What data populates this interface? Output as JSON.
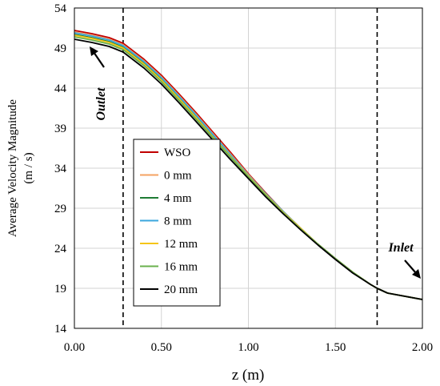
{
  "chart_data": {
    "type": "line",
    "xlabel": "z (m)",
    "ylabel": "Average Velocity Magnitude",
    "ylabel_unit": "(m / s)",
    "xlim": [
      0.0,
      2.0
    ],
    "ylim": [
      14,
      54
    ],
    "x_ticks": [
      "0.00",
      "0.50",
      "1.00",
      "1.50",
      "2.00"
    ],
    "y_ticks": [
      "14",
      "19",
      "24",
      "29",
      "34",
      "39",
      "44",
      "49",
      "54"
    ],
    "grid": true,
    "legend_position": "middle-left",
    "vertical_markers": [
      0.28,
      1.74
    ],
    "annotations": {
      "outlet": "Outlet",
      "inlet": "Inlet"
    },
    "series": [
      {
        "name": "WSO",
        "color": "#c00000",
        "x": [
          0,
          0.1,
          0.2,
          0.28,
          0.4,
          0.5,
          0.6,
          0.7,
          0.8,
          0.9,
          1.0,
          1.1,
          1.2,
          1.3,
          1.4,
          1.5,
          1.6,
          1.7,
          1.74,
          1.8,
          1.9,
          2.0
        ],
        "values": [
          51.2,
          50.8,
          50.3,
          49.6,
          47.6,
          45.6,
          43.3,
          40.9,
          38.4,
          35.9,
          33.3,
          30.9,
          28.6,
          26.5,
          24.5,
          22.7,
          21.0,
          19.5,
          19.0,
          18.4,
          18.0,
          17.6
        ]
      },
      {
        "name": "0 mm",
        "color": "#f4a261",
        "x": [
          0,
          0.1,
          0.2,
          0.28,
          0.4,
          0.5,
          0.6,
          0.7,
          0.8,
          0.9,
          1.0,
          1.1,
          1.2,
          1.3,
          1.4,
          1.5,
          1.6,
          1.7,
          1.74,
          1.8,
          1.9,
          2.0
        ],
        "values": [
          51.0,
          50.6,
          50.1,
          49.4,
          47.4,
          45.4,
          43.1,
          40.7,
          38.2,
          35.7,
          33.2,
          30.8,
          28.6,
          26.5,
          24.5,
          22.7,
          21.0,
          19.5,
          19.0,
          18.4,
          18.0,
          17.6
        ]
      },
      {
        "name": "4 mm",
        "color": "#1e7b34",
        "x": [
          0,
          0.1,
          0.2,
          0.28,
          0.4,
          0.5,
          0.6,
          0.7,
          0.8,
          0.9,
          1.0,
          1.1,
          1.2,
          1.3,
          1.4,
          1.5,
          1.6,
          1.7,
          1.74,
          1.8,
          1.9,
          2.0
        ],
        "values": [
          50.7,
          50.3,
          49.8,
          49.1,
          47.1,
          45.1,
          42.8,
          40.4,
          37.9,
          35.4,
          33.0,
          30.7,
          28.5,
          26.4,
          24.5,
          22.7,
          21.0,
          19.5,
          19.0,
          18.4,
          18.0,
          17.6
        ]
      },
      {
        "name": "8 mm",
        "color": "#3aa6dd",
        "x": [
          0,
          0.1,
          0.2,
          0.28,
          0.4,
          0.5,
          0.6,
          0.7,
          0.8,
          0.9,
          1.0,
          1.1,
          1.2,
          1.3,
          1.4,
          1.5,
          1.6,
          1.7,
          1.74,
          1.8,
          1.9,
          2.0
        ],
        "values": [
          50.9,
          50.5,
          50.0,
          49.3,
          47.3,
          45.3,
          43.0,
          40.6,
          38.1,
          35.6,
          33.1,
          30.8,
          28.6,
          26.5,
          24.5,
          22.7,
          21.0,
          19.5,
          19.0,
          18.4,
          18.0,
          17.6
        ]
      },
      {
        "name": "12 mm",
        "color": "#f5c518",
        "x": [
          0,
          0.1,
          0.2,
          0.28,
          0.4,
          0.5,
          0.6,
          0.7,
          0.8,
          0.9,
          1.0,
          1.1,
          1.2,
          1.3,
          1.4,
          1.5,
          1.6,
          1.7,
          1.74,
          1.8,
          1.9,
          2.0
        ],
        "values": [
          50.6,
          50.2,
          49.7,
          49.0,
          47.0,
          45.0,
          42.7,
          40.3,
          37.8,
          35.4,
          33.0,
          30.7,
          28.5,
          26.5,
          24.5,
          22.7,
          21.0,
          19.5,
          19.0,
          18.4,
          18.0,
          17.6
        ]
      },
      {
        "name": "16 mm",
        "color": "#6ab04c",
        "x": [
          0,
          0.1,
          0.2,
          0.28,
          0.4,
          0.5,
          0.6,
          0.7,
          0.8,
          0.9,
          1.0,
          1.1,
          1.2,
          1.3,
          1.4,
          1.5,
          1.6,
          1.7,
          1.74,
          1.8,
          1.9,
          2.0
        ],
        "values": [
          50.4,
          50.0,
          49.5,
          48.8,
          46.8,
          44.8,
          42.5,
          40.1,
          37.7,
          35.3,
          32.9,
          30.6,
          28.4,
          26.4,
          24.5,
          22.7,
          21.0,
          19.5,
          19.0,
          18.4,
          18.0,
          17.6
        ]
      },
      {
        "name": "20 mm",
        "color": "#000000",
        "x": [
          0,
          0.1,
          0.2,
          0.28,
          0.4,
          0.5,
          0.6,
          0.7,
          0.8,
          0.9,
          1.0,
          1.1,
          1.2,
          1.3,
          1.4,
          1.5,
          1.6,
          1.7,
          1.74,
          1.8,
          1.9,
          2.0
        ],
        "values": [
          50.1,
          49.7,
          49.2,
          48.5,
          46.5,
          44.5,
          42.2,
          39.8,
          37.4,
          35.0,
          32.7,
          30.4,
          28.3,
          26.3,
          24.4,
          22.6,
          20.9,
          19.5,
          19.0,
          18.4,
          18.0,
          17.6
        ]
      }
    ]
  }
}
